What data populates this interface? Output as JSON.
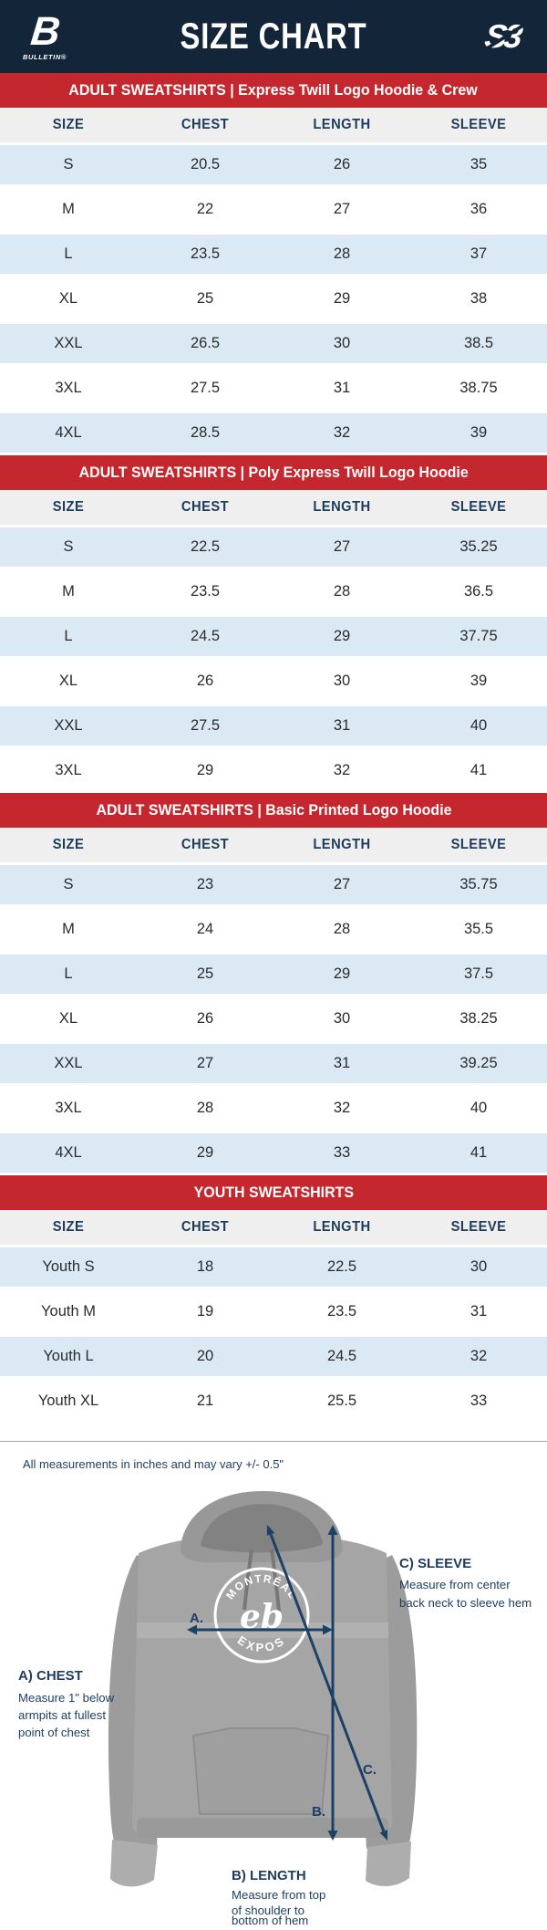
{
  "header": {
    "title": "SIZE CHART",
    "left_logo_text": "B",
    "left_logo_sub": "BULLETIN®",
    "right_logo_text": "S3"
  },
  "tables": [
    {
      "section": "ADULT SWEATSHIRTS | Express Twill Logo Hoodie & Crew",
      "columns": [
        "SIZE",
        "CHEST",
        "LENGTH",
        "SLEEVE"
      ],
      "rows": [
        [
          "S",
          "20.5",
          "26",
          "35"
        ],
        [
          "M",
          "22",
          "27",
          "36"
        ],
        [
          "L",
          "23.5",
          "28",
          "37"
        ],
        [
          "XL",
          "25",
          "29",
          "38"
        ],
        [
          "XXL",
          "26.5",
          "30",
          "38.5"
        ],
        [
          "3XL",
          "27.5",
          "31",
          "38.75"
        ],
        [
          "4XL",
          "28.5",
          "32",
          "39"
        ]
      ]
    },
    {
      "section": "ADULT SWEATSHIRTS | Poly Express Twill Logo Hoodie",
      "columns": [
        "SIZE",
        "CHEST",
        "LENGTH",
        "SLEEVE"
      ],
      "rows": [
        [
          "S",
          "22.5",
          "27",
          "35.25"
        ],
        [
          "M",
          "23.5",
          "28",
          "36.5"
        ],
        [
          "L",
          "24.5",
          "29",
          "37.75"
        ],
        [
          "XL",
          "26",
          "30",
          "39"
        ],
        [
          "XXL",
          "27.5",
          "31",
          "40"
        ],
        [
          "3XL",
          "29",
          "32",
          "41"
        ]
      ]
    },
    {
      "section": "ADULT SWEATSHIRTS | Basic Printed Logo Hoodie",
      "columns": [
        "SIZE",
        "CHEST",
        "LENGTH",
        "SLEEVE"
      ],
      "rows": [
        [
          "S",
          "23",
          "27",
          "35.75"
        ],
        [
          "M",
          "24",
          "28",
          "35.5"
        ],
        [
          "L",
          "25",
          "29",
          "37.5"
        ],
        [
          "XL",
          "26",
          "30",
          "38.25"
        ],
        [
          "XXL",
          "27",
          "31",
          "39.25"
        ],
        [
          "3XL",
          "28",
          "32",
          "40"
        ],
        [
          "4XL",
          "29",
          "33",
          "41"
        ]
      ]
    },
    {
      "section": "YOUTH SWEATSHIRTS",
      "columns": [
        "SIZE",
        "CHEST",
        "LENGTH",
        "SLEEVE"
      ],
      "rows": [
        [
          "Youth S",
          "18",
          "22.5",
          "30"
        ],
        [
          "Youth M",
          "19",
          "23.5",
          "31"
        ],
        [
          "Youth L",
          "20",
          "24.5",
          "32"
        ],
        [
          "Youth XL",
          "21",
          "25.5",
          "33"
        ]
      ]
    }
  ],
  "note": "All measurements in inches and may vary +/- 0.5\"",
  "diagram": {
    "arrow_labels": {
      "a": "A.",
      "b": "B.",
      "c": "C."
    },
    "labels": {
      "chest": {
        "title": "A) CHEST",
        "line1": "Measure 1\" below",
        "line2": "armpits at fullest",
        "line3": "point of chest"
      },
      "length": {
        "title": "B) LENGTH",
        "line1": "Measure from top",
        "line2": "of shoulder to",
        "line3": "bottom of hem"
      },
      "sleeve": {
        "title": "C) SLEEVE",
        "line1": "Measure from center",
        "line2": "back neck to sleeve hem"
      }
    },
    "hoodie_logo": {
      "top": "MONTRÉAL",
      "bottom": "EXPOS"
    }
  },
  "colors": {
    "navy_header": "#132639",
    "red_band": "#c4272e",
    "row_stripe_blue": "#dbe9f5",
    "table_head_gray": "#f0eff0",
    "label_navy": "#1d3c5c",
    "arrow_navy": "#1d4166",
    "hoodie_gray": "#a5a5a5"
  }
}
